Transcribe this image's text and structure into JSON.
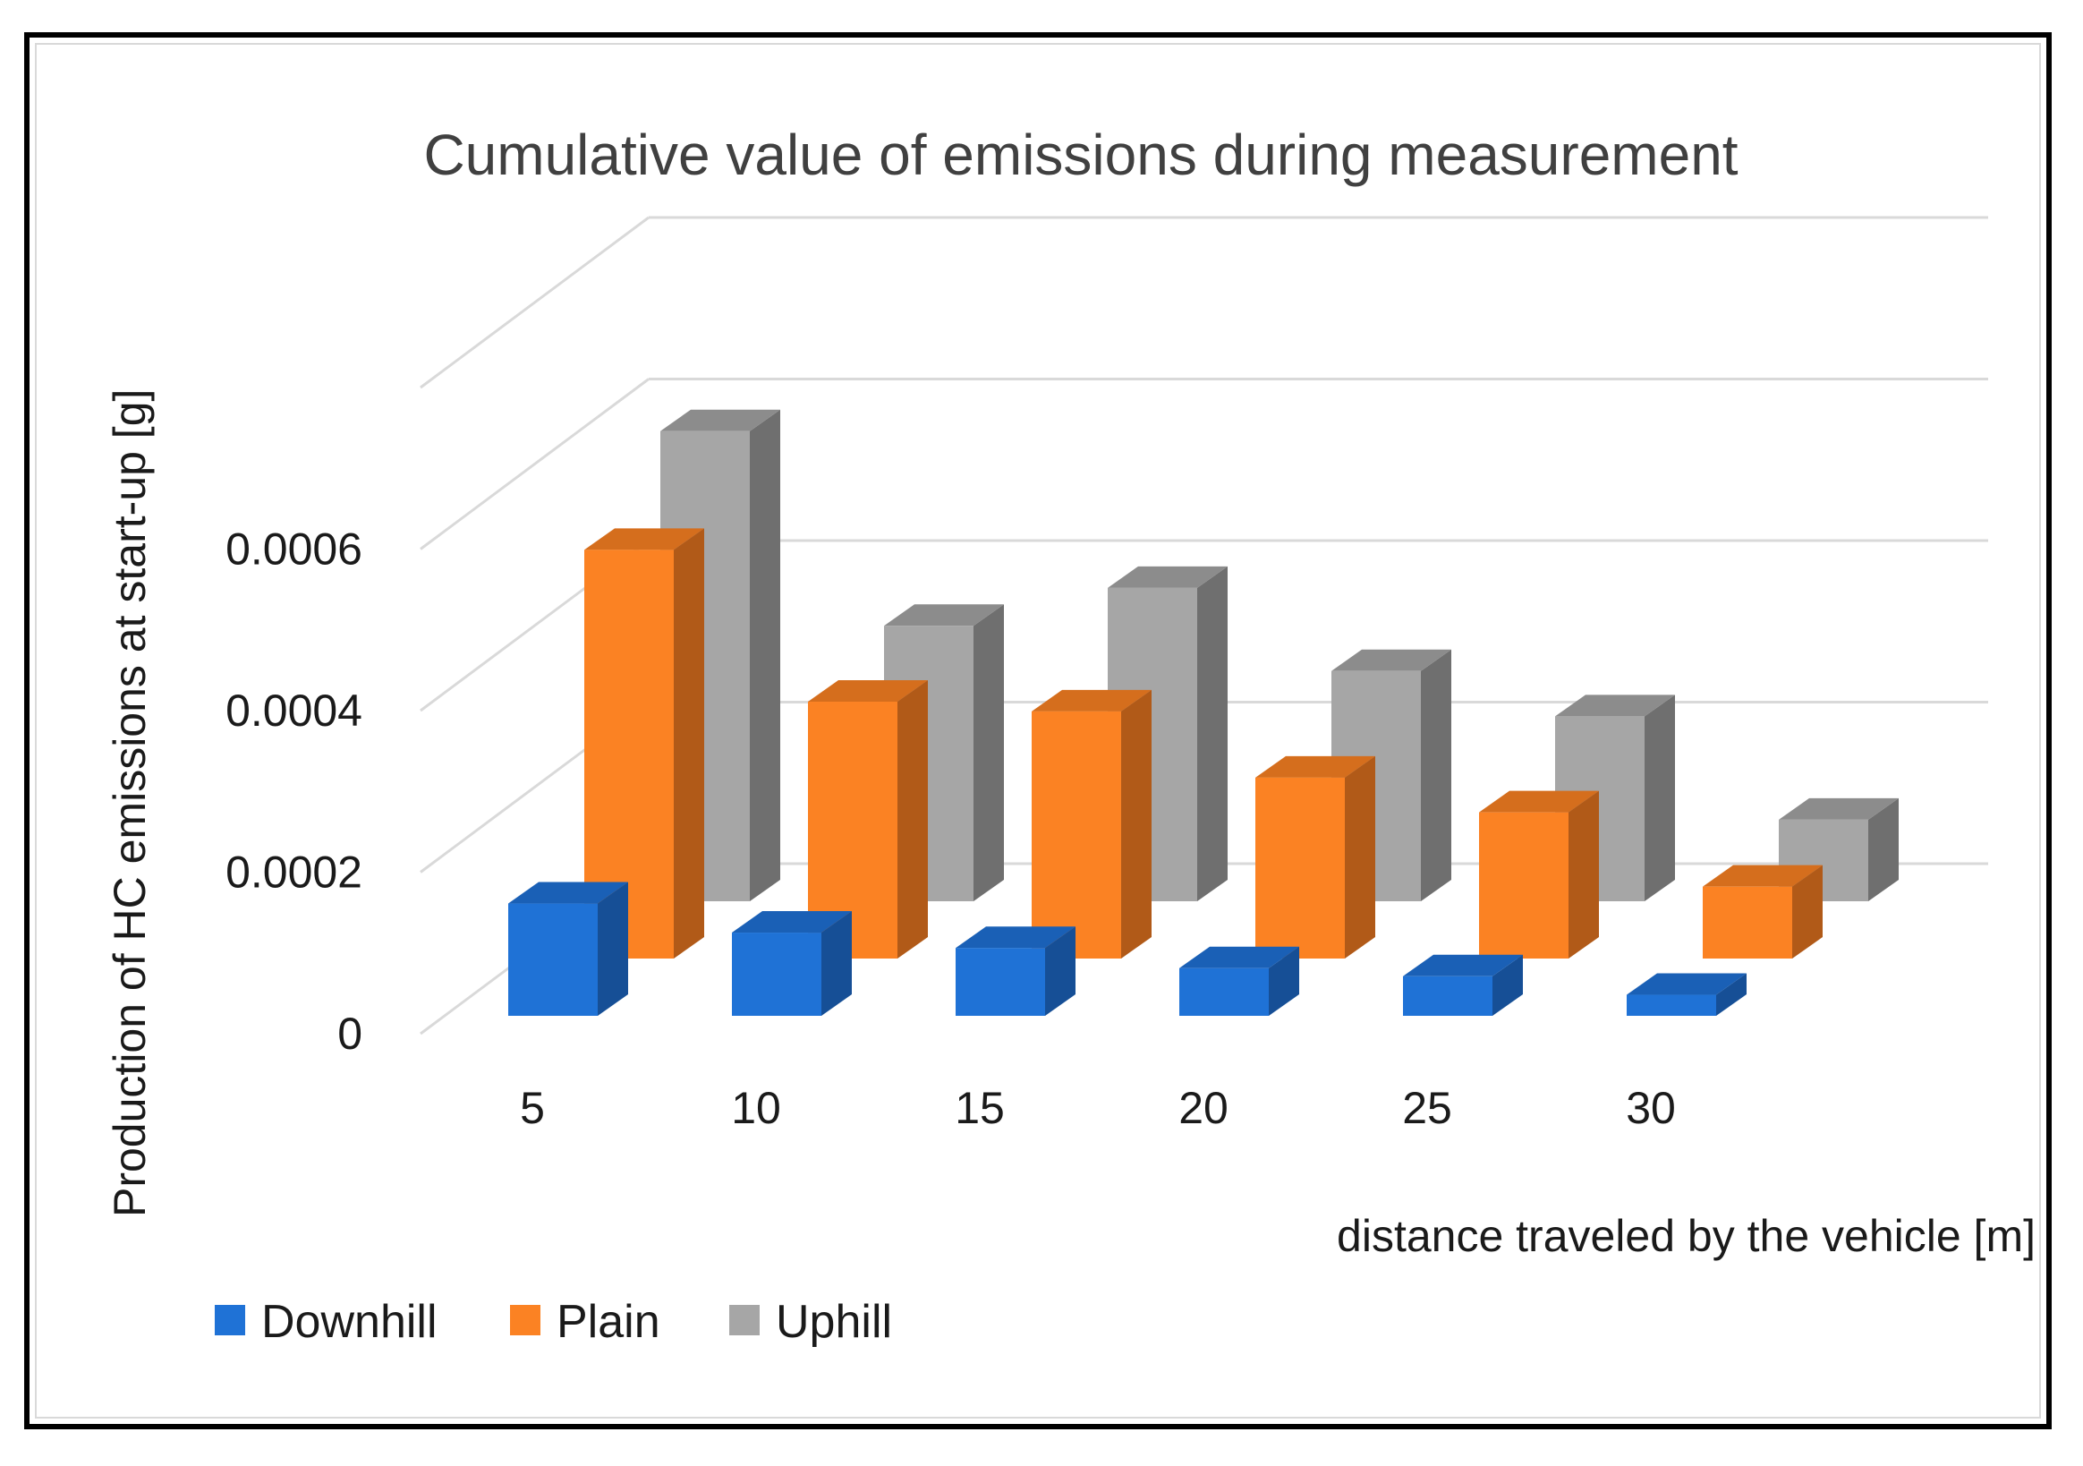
{
  "chart_data": {
    "type": "bar",
    "style": "3d-clustered-column",
    "title": "Cumulative value of emissions during measurement",
    "xlabel": "distance traveled by the vehicle [m]",
    "ylabel": "Production of HC emissions at start-up [g]",
    "categories": [
      "5",
      "10",
      "15",
      "20",
      "25",
      "30"
    ],
    "yticks": [
      "0",
      "0.0002",
      "0.0004",
      "0.0006"
    ],
    "ylim": [
      0,
      0.0008
    ],
    "grid": true,
    "legend_position": "bottom-left",
    "series": [
      {
        "name": "Downhill",
        "values": [
          0.000139,
          0.000103,
          8.4e-05,
          5.9e-05,
          4.9e-05,
          2.6e-05
        ]
      },
      {
        "name": "Plain",
        "values": [
          0.000506,
          0.000318,
          0.000306,
          0.000224,
          0.000181,
          8.9e-05
        ]
      },
      {
        "name": "Uphill",
        "values": [
          0.000582,
          0.000341,
          0.000388,
          0.000285,
          0.000229,
          0.000101
        ]
      }
    ],
    "colors": {
      "Downhill": {
        "front": "#1f72d6",
        "side": "#164f96",
        "top": "#1a60b6"
      },
      "Plain": {
        "front": "#fb8223",
        "side": "#b15a18",
        "top": "#d56e1d"
      },
      "Uphill": {
        "front": "#a6a6a6",
        "side": "#6f6f6f",
        "top": "#8c8c8c"
      }
    }
  }
}
